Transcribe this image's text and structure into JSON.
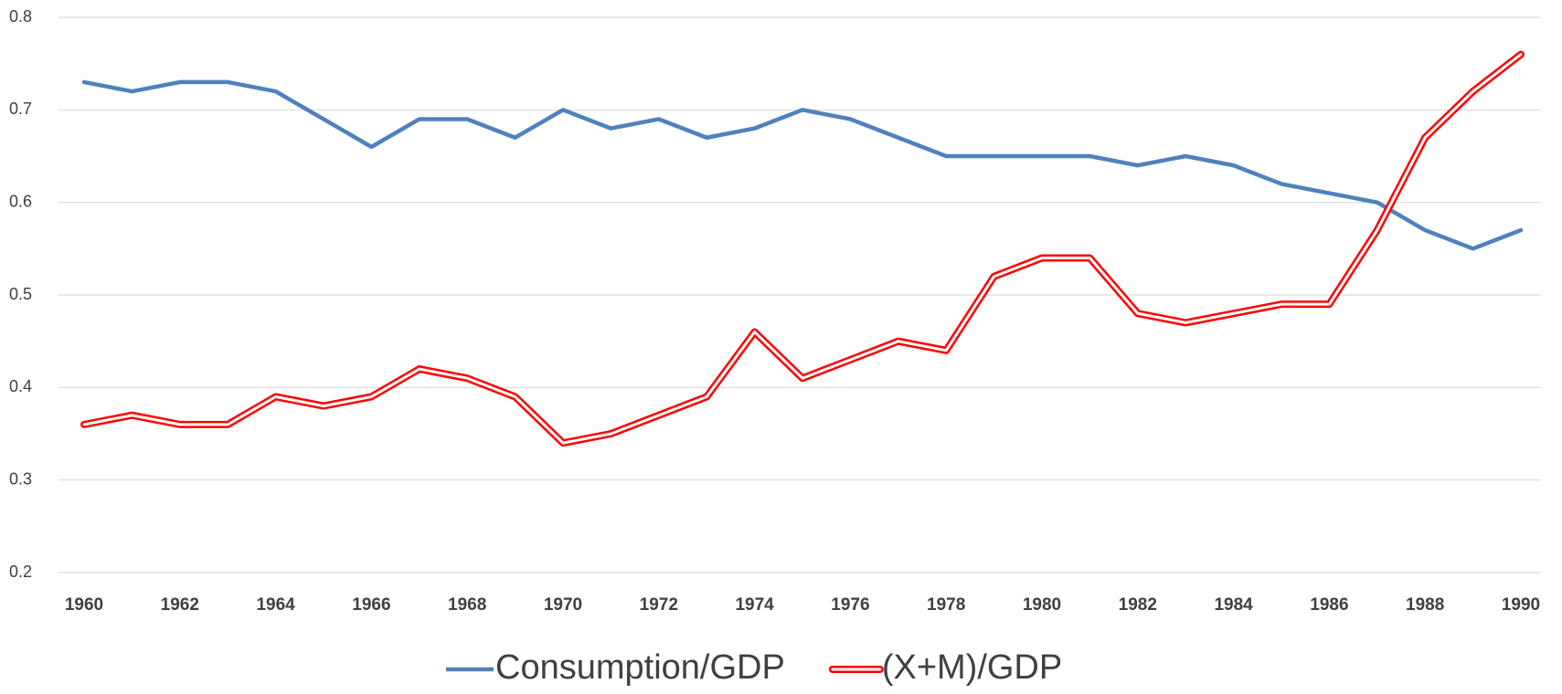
{
  "chart_data": {
    "type": "line",
    "x": [
      1960,
      1961,
      1962,
      1963,
      1964,
      1965,
      1966,
      1967,
      1968,
      1969,
      1970,
      1971,
      1972,
      1973,
      1974,
      1975,
      1976,
      1977,
      1978,
      1979,
      1980,
      1981,
      1982,
      1983,
      1984,
      1985,
      1986,
      1987,
      1988,
      1989,
      1990
    ],
    "xlim": [
      1960,
      1990
    ],
    "xticks": [
      1960,
      1962,
      1964,
      1966,
      1968,
      1970,
      1972,
      1974,
      1976,
      1978,
      1980,
      1982,
      1984,
      1986,
      1988,
      1990
    ],
    "ylim": [
      0.2,
      0.8
    ],
    "yticks": [
      0.2,
      0.3,
      0.4,
      0.5,
      0.6,
      0.7,
      0.8
    ],
    "grid": true,
    "legend": "bottom",
    "series": [
      {
        "name": "Consumption/GDP",
        "color": "#4f81bd",
        "double": false,
        "values": [
          0.73,
          0.72,
          0.73,
          0.73,
          0.72,
          0.69,
          0.66,
          0.69,
          0.69,
          0.67,
          0.7,
          0.68,
          0.69,
          0.67,
          0.68,
          0.7,
          0.69,
          0.67,
          0.65,
          0.65,
          0.65,
          0.65,
          0.64,
          0.65,
          0.64,
          0.62,
          0.61,
          0.6,
          0.57,
          0.55,
          0.57
        ]
      },
      {
        "name": "(X+M)/GDP",
        "color": "#ff0000",
        "double": true,
        "values": [
          0.36,
          0.37,
          0.36,
          0.36,
          0.39,
          0.38,
          0.39,
          0.42,
          0.41,
          0.39,
          0.34,
          0.35,
          0.37,
          0.39,
          0.46,
          0.41,
          0.43,
          0.45,
          0.44,
          0.52,
          0.54,
          0.54,
          0.48,
          0.47,
          0.48,
          0.49,
          0.49,
          0.57,
          0.67,
          0.72,
          0.76
        ]
      }
    ]
  }
}
